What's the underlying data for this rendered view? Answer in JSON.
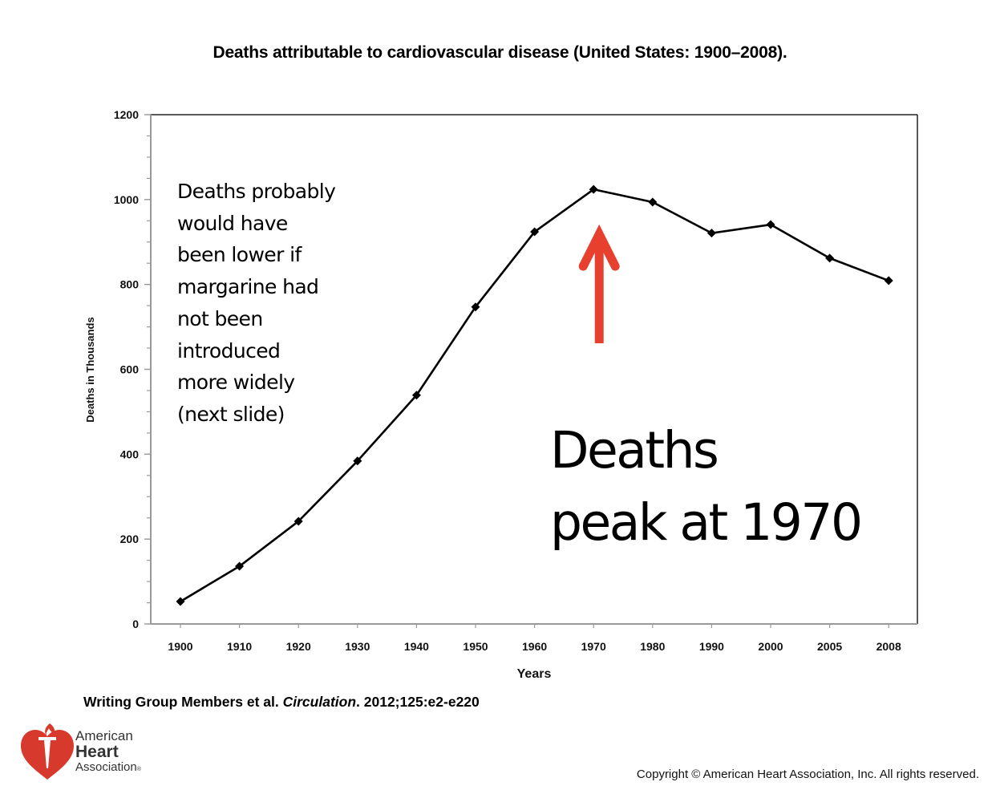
{
  "title": "Deaths attributable to cardiovascular disease (United States: 1900–2008).",
  "chart_data": {
    "type": "line",
    "title": "Deaths attributable to cardiovascular disease (United States: 1900–2008).",
    "xlabel": "Years",
    "ylabel": "Deaths in Thousands",
    "categories": [
      "1900",
      "1910",
      "1920",
      "1930",
      "1940",
      "1950",
      "1960",
      "1970",
      "1980",
      "1990",
      "2000",
      "2005",
      "2008"
    ],
    "series": [
      {
        "name": "Deaths (thousands)",
        "values": [
          53,
          136,
          242,
          384,
          539,
          747,
          924,
          1024,
          994,
          921,
          941,
          862,
          809
        ],
        "color": "#000000",
        "marker": "diamond"
      }
    ],
    "ylim": [
      0,
      1200
    ],
    "yticks": [
      0,
      200,
      400,
      600,
      800,
      1000,
      1200
    ],
    "yminor_step": 50,
    "grid": false,
    "legend": "none",
    "annotations": [
      {
        "text": "Deaths probably would have been lower if margarine had not been introduced more widely (next slide)",
        "lines": [
          "Deaths probably",
          "would have",
          "been lower if",
          "margarine had",
          "not been",
          "introduced",
          "more widely",
          "(next slide)"
        ]
      },
      {
        "text": "Deaths peak at 1970",
        "lines": [
          "Deaths",
          "peak at 1970"
        ]
      },
      {
        "type": "arrow",
        "points_to": "1970",
        "color": "#e8402f"
      }
    ]
  },
  "citation": {
    "authors": "Writing Group Members et al.",
    "journal": "Circulation",
    "ref": ". 2012;125:e2-e220"
  },
  "logo": {
    "line1": "American",
    "line2": "Heart",
    "line3": "Association",
    "mark": "®",
    "color": "#d73a2c"
  },
  "copyright": "Copyright © American Heart Association, Inc. All rights reserved."
}
